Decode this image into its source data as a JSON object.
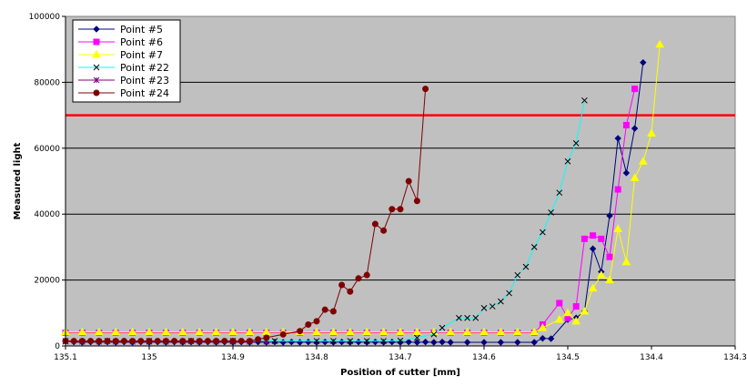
{
  "chart_data": {
    "type": "line",
    "title": "",
    "xlabel": "Position of cutter [mm]",
    "ylabel": "Measured light",
    "xlim": [
      135.1,
      134.3
    ],
    "x_reversed": true,
    "ylim": [
      0,
      100000
    ],
    "x_ticks": [
      "135.1",
      "135",
      "134.9",
      "134.8",
      "134.7",
      "134.6",
      "134.5",
      "134.4",
      "134.3"
    ],
    "y_ticks": [
      "0",
      "20000",
      "40000",
      "60000",
      "80000",
      "100000"
    ],
    "plot_background": "#c0c0c0",
    "grid": "horizontal",
    "legend_position": "top-left",
    "threshold": {
      "value": 70000,
      "color": "#ff0000"
    },
    "series": [
      {
        "name": "Point #5",
        "color": "#000080",
        "marker": "diamond",
        "points": [
          [
            135.09,
            1200
          ],
          [
            135.08,
            1100
          ],
          [
            135.07,
            1200
          ],
          [
            135.06,
            1100
          ],
          [
            135.05,
            1200
          ],
          [
            135.04,
            1100
          ],
          [
            135.03,
            1200
          ],
          [
            135.02,
            1100
          ],
          [
            135.01,
            1200
          ],
          [
            135.0,
            1100
          ],
          [
            134.99,
            1200
          ],
          [
            134.98,
            1100
          ],
          [
            134.97,
            1200
          ],
          [
            134.96,
            1100
          ],
          [
            134.95,
            1200
          ],
          [
            134.94,
            1100
          ],
          [
            134.93,
            1200
          ],
          [
            134.92,
            1100
          ],
          [
            134.91,
            1200
          ],
          [
            134.9,
            1100
          ],
          [
            134.89,
            1200
          ],
          [
            134.88,
            1100
          ],
          [
            134.87,
            1200
          ],
          [
            134.86,
            1100
          ],
          [
            134.85,
            1200
          ],
          [
            134.84,
            1100
          ],
          [
            134.83,
            1200
          ],
          [
            134.82,
            1100
          ],
          [
            134.81,
            1200
          ],
          [
            134.8,
            1100
          ],
          [
            134.79,
            1200
          ],
          [
            134.78,
            1100
          ],
          [
            134.77,
            1200
          ],
          [
            134.76,
            1100
          ],
          [
            134.75,
            1200
          ],
          [
            134.74,
            1100
          ],
          [
            134.73,
            1200
          ],
          [
            134.72,
            1100
          ],
          [
            134.71,
            1200
          ],
          [
            134.7,
            1100
          ],
          [
            134.69,
            1200
          ],
          [
            134.68,
            1100
          ],
          [
            134.67,
            1200
          ],
          [
            134.66,
            1100
          ],
          [
            134.65,
            1200
          ],
          [
            134.64,
            1100
          ],
          [
            134.62,
            1100
          ],
          [
            134.6,
            1100
          ],
          [
            134.58,
            1100
          ],
          [
            134.56,
            1100
          ],
          [
            134.54,
            1100
          ],
          [
            134.53,
            2300
          ],
          [
            134.52,
            2200
          ],
          [
            134.5,
            8000
          ],
          [
            134.49,
            8500
          ],
          [
            134.48,
            10500
          ],
          [
            134.47,
            29500
          ],
          [
            134.46,
            22500
          ],
          [
            134.45,
            39500
          ],
          [
            134.44,
            63000
          ],
          [
            134.43,
            52500
          ],
          [
            134.42,
            66000
          ],
          [
            134.41,
            86000
          ]
        ]
      },
      {
        "name": "Point #6",
        "color": "#ff00ff",
        "marker": "square",
        "points": [
          [
            135.1,
            4000
          ],
          [
            135.08,
            4000
          ],
          [
            135.06,
            4000
          ],
          [
            135.04,
            4000
          ],
          [
            135.02,
            4000
          ],
          [
            135.0,
            4000
          ],
          [
            134.98,
            4000
          ],
          [
            134.96,
            4000
          ],
          [
            134.94,
            4000
          ],
          [
            134.92,
            4000
          ],
          [
            134.9,
            4000
          ],
          [
            134.88,
            4000
          ],
          [
            134.86,
            4000
          ],
          [
            134.84,
            4000
          ],
          [
            134.82,
            4000
          ],
          [
            134.8,
            4000
          ],
          [
            134.78,
            4000
          ],
          [
            134.76,
            4000
          ],
          [
            134.74,
            4000
          ],
          [
            134.72,
            4000
          ],
          [
            134.7,
            4000
          ],
          [
            134.68,
            4000
          ],
          [
            134.66,
            4000
          ],
          [
            134.64,
            4000
          ],
          [
            134.62,
            4000
          ],
          [
            134.6,
            4000
          ],
          [
            134.58,
            4000
          ],
          [
            134.56,
            4000
          ],
          [
            134.54,
            4000
          ],
          [
            134.53,
            6500
          ],
          [
            134.51,
            13000
          ],
          [
            134.5,
            8500
          ],
          [
            134.49,
            12000
          ],
          [
            134.48,
            32500
          ],
          [
            134.47,
            33500
          ],
          [
            134.46,
            32500
          ],
          [
            134.45,
            27000
          ],
          [
            134.44,
            47500
          ],
          [
            134.43,
            67000
          ],
          [
            134.42,
            78000
          ]
        ]
      },
      {
        "name": "Point #7",
        "color": "#ffff00",
        "marker": "triangle",
        "points": [
          [
            135.1,
            4200
          ],
          [
            135.08,
            4200
          ],
          [
            135.06,
            4200
          ],
          [
            135.04,
            4200
          ],
          [
            135.02,
            4200
          ],
          [
            135.0,
            4200
          ],
          [
            134.98,
            4200
          ],
          [
            134.96,
            4200
          ],
          [
            134.94,
            4200
          ],
          [
            134.92,
            4200
          ],
          [
            134.9,
            4200
          ],
          [
            134.88,
            4200
          ],
          [
            134.86,
            4200
          ],
          [
            134.84,
            4200
          ],
          [
            134.82,
            4200
          ],
          [
            134.8,
            4200
          ],
          [
            134.78,
            4200
          ],
          [
            134.76,
            4200
          ],
          [
            134.74,
            4200
          ],
          [
            134.72,
            4200
          ],
          [
            134.7,
            4200
          ],
          [
            134.68,
            4200
          ],
          [
            134.66,
            4200
          ],
          [
            134.64,
            4200
          ],
          [
            134.62,
            4200
          ],
          [
            134.6,
            4200
          ],
          [
            134.58,
            4200
          ],
          [
            134.56,
            4200
          ],
          [
            134.54,
            4200
          ],
          [
            134.53,
            5500
          ],
          [
            134.51,
            8000
          ],
          [
            134.5,
            10000
          ],
          [
            134.49,
            7500
          ],
          [
            134.48,
            10500
          ],
          [
            134.47,
            17500
          ],
          [
            134.46,
            21500
          ],
          [
            134.45,
            20000
          ],
          [
            134.44,
            35500
          ],
          [
            134.43,
            25500
          ],
          [
            134.42,
            51000
          ],
          [
            134.41,
            56000
          ],
          [
            134.4,
            64500
          ],
          [
            134.39,
            91500
          ]
        ]
      },
      {
        "name": "Point #22",
        "color": "#00ffff",
        "marker": "x",
        "points": [
          [
            135.1,
            1500
          ],
          [
            135.05,
            1500
          ],
          [
            135.0,
            1500
          ],
          [
            134.95,
            1500
          ],
          [
            134.9,
            1500
          ],
          [
            134.85,
            1500
          ],
          [
            134.8,
            1500
          ],
          [
            134.78,
            1500
          ],
          [
            134.76,
            1500
          ],
          [
            134.74,
            1500
          ],
          [
            134.72,
            1500
          ],
          [
            134.7,
            1600
          ],
          [
            134.68,
            2500
          ],
          [
            134.66,
            3500
          ],
          [
            134.65,
            5500
          ],
          [
            134.63,
            8500
          ],
          [
            134.62,
            8500
          ],
          [
            134.61,
            8500
          ],
          [
            134.6,
            11500
          ],
          [
            134.59,
            12000
          ],
          [
            134.58,
            13500
          ],
          [
            134.57,
            16000
          ],
          [
            134.56,
            21500
          ],
          [
            134.55,
            24000
          ],
          [
            134.54,
            30000
          ],
          [
            134.53,
            34500
          ],
          [
            134.52,
            40500
          ],
          [
            134.51,
            46500
          ],
          [
            134.5,
            56000
          ],
          [
            134.49,
            61500
          ],
          [
            134.48,
            74500
          ]
        ]
      },
      {
        "name": "Point #23",
        "color": "#800080",
        "marker": "star",
        "points": [
          [
            135.1,
            1300
          ],
          [
            135.08,
            1300
          ],
          [
            135.06,
            1300
          ],
          [
            135.04,
            1300
          ],
          [
            135.02,
            1300
          ],
          [
            135.0,
            1300
          ],
          [
            134.98,
            1300
          ],
          [
            134.96,
            1300
          ],
          [
            134.94,
            1300
          ],
          [
            134.92,
            1300
          ],
          [
            134.9,
            1300
          ],
          [
            134.88,
            1300
          ],
          [
            134.86,
            1300
          ]
        ]
      },
      {
        "name": "Point #24",
        "color": "#800000",
        "marker": "circle",
        "points": [
          [
            135.1,
            1500
          ],
          [
            135.09,
            1500
          ],
          [
            135.08,
            1500
          ],
          [
            135.07,
            1500
          ],
          [
            135.06,
            1500
          ],
          [
            135.05,
            1500
          ],
          [
            135.04,
            1500
          ],
          [
            135.03,
            1500
          ],
          [
            135.02,
            1500
          ],
          [
            135.01,
            1500
          ],
          [
            135.0,
            1500
          ],
          [
            134.99,
            1500
          ],
          [
            134.98,
            1500
          ],
          [
            134.97,
            1500
          ],
          [
            134.96,
            1500
          ],
          [
            134.95,
            1500
          ],
          [
            134.94,
            1500
          ],
          [
            134.93,
            1500
          ],
          [
            134.92,
            1500
          ],
          [
            134.91,
            1500
          ],
          [
            134.9,
            1500
          ],
          [
            134.89,
            1500
          ],
          [
            134.88,
            1500
          ],
          [
            134.87,
            2000
          ],
          [
            134.86,
            2500
          ],
          [
            134.84,
            3500
          ],
          [
            134.82,
            4500
          ],
          [
            134.81,
            6500
          ],
          [
            134.8,
            7500
          ],
          [
            134.79,
            11000
          ],
          [
            134.78,
            10500
          ],
          [
            134.77,
            18500
          ],
          [
            134.76,
            16500
          ],
          [
            134.75,
            20500
          ],
          [
            134.74,
            21500
          ],
          [
            134.73,
            37000
          ],
          [
            134.72,
            35000
          ],
          [
            134.71,
            41500
          ],
          [
            134.7,
            41500
          ],
          [
            134.69,
            50000
          ],
          [
            134.68,
            44000
          ],
          [
            134.67,
            78000
          ]
        ]
      }
    ]
  }
}
